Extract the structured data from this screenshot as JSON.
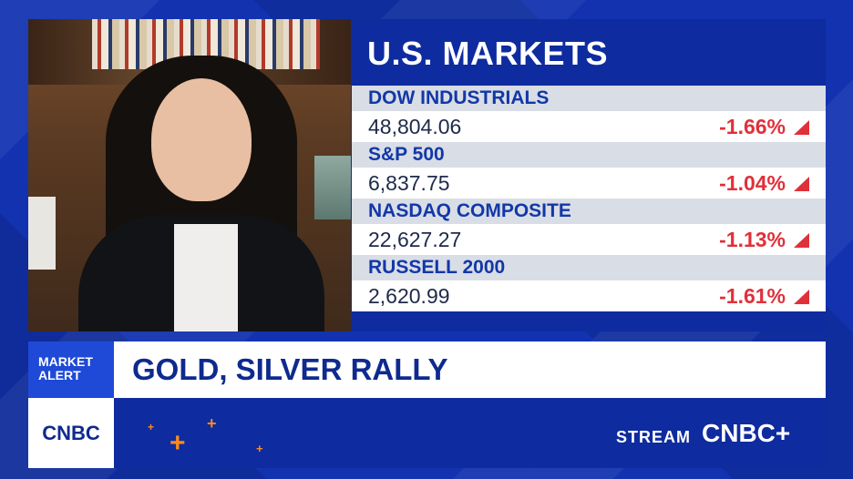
{
  "panel": {
    "title": "U.S. MARKETS",
    "rows": [
      {
        "name": "DOW INDUSTRIALS",
        "value": "48,804.06",
        "change": "-1.66%"
      },
      {
        "name": "S&P 500",
        "value": "6,837.75",
        "change": "-1.04%"
      },
      {
        "name": "NASDAQ COMPOSITE",
        "value": "22,627.27",
        "change": "-1.13%"
      },
      {
        "name": "RUSSELL 2000",
        "value": "2,620.99",
        "change": "-1.61%"
      }
    ]
  },
  "alert": {
    "line1": "MARKET",
    "line2": "ALERT"
  },
  "headline": "GOLD, SILVER RALLY",
  "logo": "CNBC",
  "stream": {
    "label": "STREAM",
    "brand": "CNBC+"
  },
  "colors": {
    "accent": "#1232b0",
    "negative": "#e0303a",
    "headline": "#0f2a8e",
    "plus": "#ff8a1c"
  }
}
